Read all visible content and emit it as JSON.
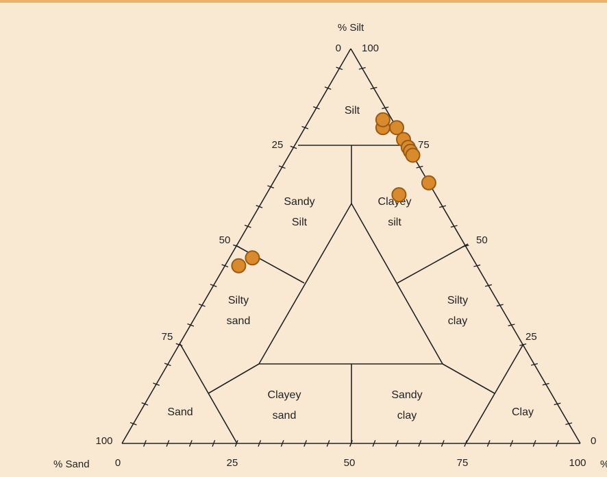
{
  "chart_data": {
    "type": "scatter",
    "subtype": "ternary",
    "axes": {
      "silt": {
        "label": "% Silt",
        "ticks": [
          0,
          25,
          50,
          75,
          100
        ]
      },
      "sand": {
        "label": "% Sand",
        "ticks": [
          0,
          25,
          50,
          75,
          100
        ]
      },
      "clay": {
        "label": "%",
        "ticks": [
          0,
          25,
          50,
          75,
          100
        ]
      }
    },
    "vertices": {
      "top": "silt 100",
      "bottom-left": "sand 100",
      "bottom-right": "clay 100"
    },
    "regions": [
      {
        "lines": [
          "Silt"
        ]
      },
      {
        "lines": [
          "Sandy",
          "Silt"
        ]
      },
      {
        "lines": [
          "Clayey",
          "silt"
        ]
      },
      {
        "lines": [
          "Silty",
          "sand"
        ]
      },
      {
        "lines": [
          "Silty",
          "clay"
        ]
      },
      {
        "lines": [
          "Sand"
        ]
      },
      {
        "lines": [
          "Clayey",
          "sand"
        ]
      },
      {
        "lines": [
          "Sandy",
          "clay"
        ]
      },
      {
        "lines": [
          "Clay"
        ]
      }
    ],
    "points": [
      {
        "sand": 3,
        "silt": 80,
        "clay": 17
      },
      {
        "sand": 2,
        "silt": 82,
        "clay": 16
      },
      {
        "sand": 0,
        "silt": 80,
        "clay": 20
      },
      {
        "sand": 0,
        "silt": 77,
        "clay": 23
      },
      {
        "sand": 0,
        "silt": 75,
        "clay": 25
      },
      {
        "sand": 0,
        "silt": 74,
        "clay": 26
      },
      {
        "sand": 0,
        "silt": 73,
        "clay": 27
      },
      {
        "sand": 0,
        "silt": 66,
        "clay": 34
      },
      {
        "sand": 8,
        "silt": 63,
        "clay": 29
      },
      {
        "sand": 48,
        "silt": 47,
        "clay": 5
      },
      {
        "sand": 52,
        "silt": 45,
        "clay": 3
      }
    ],
    "point_color": "#d88a2c",
    "grid": false
  }
}
